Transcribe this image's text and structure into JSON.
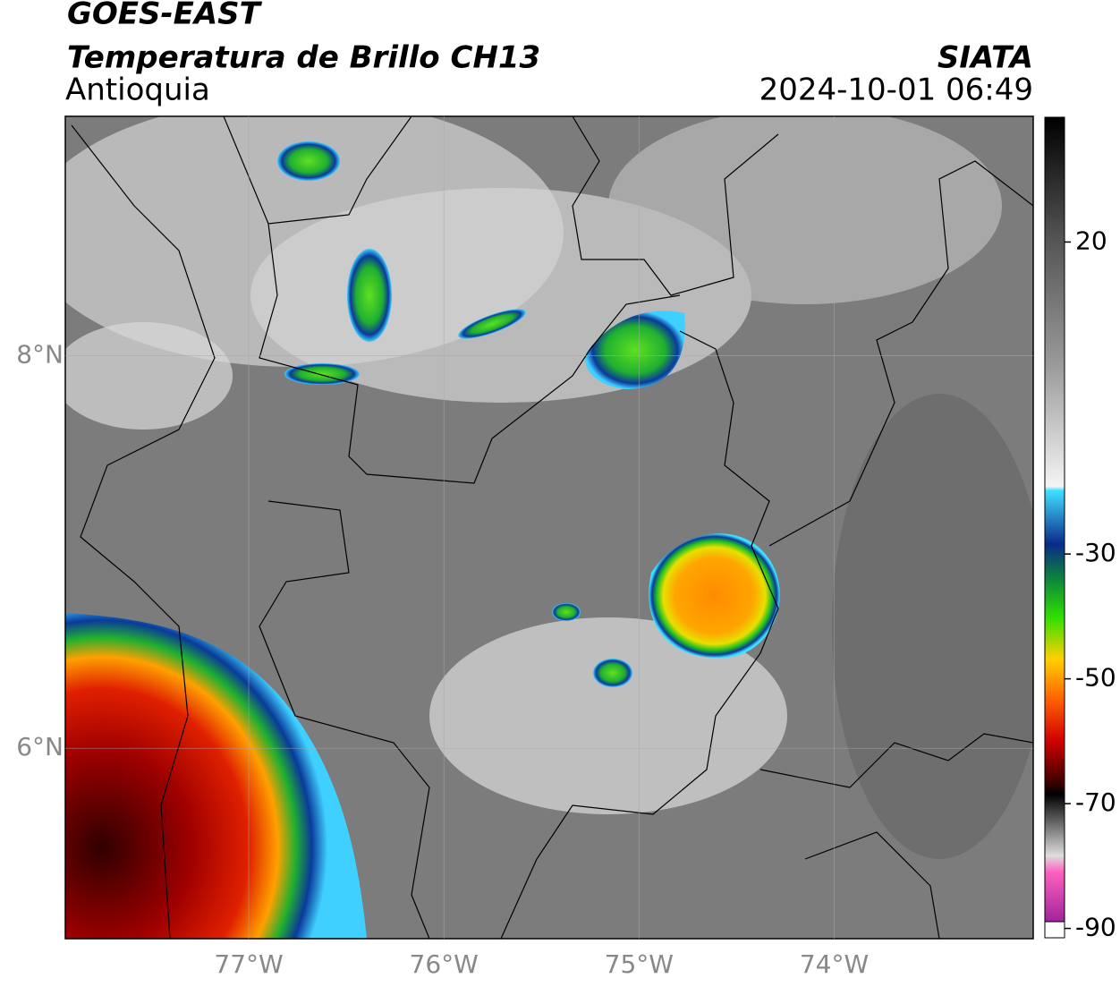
{
  "header": {
    "title": "GOES-EAST",
    "subtitle": "Temperatura de Brillo CH13",
    "region": "Antioquia",
    "source": "SIATA",
    "datetime": "2024-10-01 06:49"
  },
  "map": {
    "xlim": [
      -77.94,
      -72.98
    ],
    "ylim": [
      5.03,
      9.22
    ],
    "xticks": [
      {
        "value": -77,
        "label": "77°W"
      },
      {
        "value": -76,
        "label": "76°W"
      },
      {
        "value": -75,
        "label": "75°W"
      },
      {
        "value": -74,
        "label": "74°W"
      }
    ],
    "yticks": [
      {
        "value": 8,
        "label": "8°N"
      },
      {
        "value": 6,
        "label": "6°N"
      }
    ],
    "grid": true
  },
  "colorbar": {
    "lim": [
      -91.5,
      40
    ],
    "ticks": [
      20,
      -30,
      -50,
      -70,
      -90
    ]
  }
}
